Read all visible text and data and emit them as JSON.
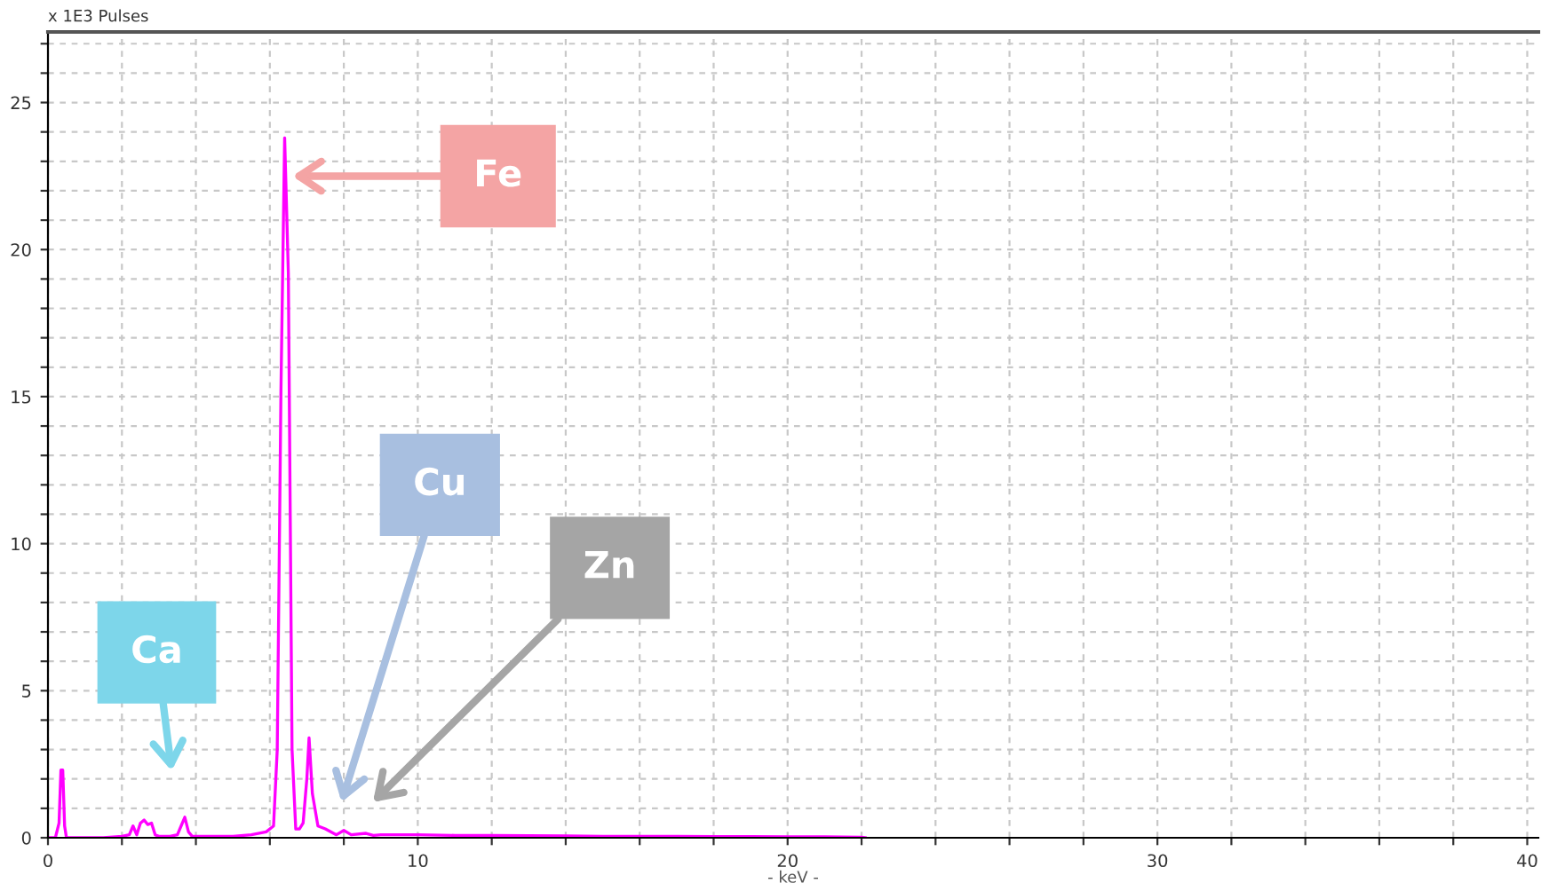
{
  "chart_data": {
    "type": "line",
    "ylabel": "x 1E3 Pulses",
    "xlabel": "- keV -",
    "series": [
      {
        "color": "#ff00ff",
        "x": [
          0,
          0.2,
          0.3,
          0.35,
          0.4,
          0.45,
          0.5,
          0.6,
          1.0,
          1.5,
          2.0,
          2.2,
          2.3,
          2.4,
          2.5,
          2.6,
          2.7,
          2.8,
          2.9,
          3.0,
          3.1,
          3.3,
          3.5,
          3.6,
          3.7,
          3.8,
          3.9,
          4.0,
          4.5,
          5.0,
          5.5,
          5.9,
          6.1,
          6.2,
          6.3,
          6.4,
          6.5,
          6.6,
          6.7,
          6.8,
          6.9,
          7.0,
          7.06,
          7.15,
          7.3,
          7.5,
          7.8,
          8.0,
          8.2,
          8.6,
          8.8,
          9.0,
          10,
          11,
          12,
          13,
          14,
          15,
          16,
          17,
          18,
          19,
          20,
          21,
          22,
          22.1
        ],
        "values": [
          0,
          0,
          0.5,
          2.3,
          2.3,
          0.4,
          0,
          0,
          0,
          0,
          0.05,
          0.1,
          0.4,
          0.1,
          0.5,
          0.6,
          0.45,
          0.5,
          0.1,
          0.05,
          0.05,
          0.05,
          0.1,
          0.4,
          0.7,
          0.2,
          0.05,
          0.05,
          0.05,
          0.05,
          0.1,
          0.2,
          0.4,
          3,
          15.2,
          23.8,
          19.2,
          3,
          0.3,
          0.3,
          0.5,
          2,
          3.4,
          1.5,
          0.4,
          0.3,
          0.1,
          0.25,
          0.1,
          0.15,
          0.08,
          0.1,
          0.1,
          0.08,
          0.08,
          0.07,
          0.06,
          0.05,
          0.05,
          0.05,
          0.04,
          0.04,
          0.03,
          0.03,
          0.02,
          0
        ]
      }
    ],
    "xlim": [
      0,
      40.3
    ],
    "ylim": [
      0,
      27.4
    ],
    "xticks": [
      0,
      {
        "value": 2,
        "label": null
      },
      {
        "value": 4,
        "label": null
      },
      {
        "value": 6,
        "label": null
      },
      {
        "value": 8,
        "label": null
      },
      10,
      {
        "value": 12,
        "label": null
      },
      {
        "value": 14,
        "label": null
      },
      {
        "value": 16,
        "label": null
      },
      {
        "value": 18,
        "label": null
      },
      20,
      {
        "value": 22,
        "label": null
      },
      {
        "value": 24,
        "label": null
      },
      {
        "value": 26,
        "label": null
      },
      {
        "value": 28,
        "label": null
      },
      30,
      {
        "value": 32,
        "label": null
      },
      {
        "value": 34,
        "label": null
      },
      {
        "value": 36,
        "label": null
      },
      {
        "value": 38,
        "label": null
      },
      40
    ],
    "yticks": [
      0,
      {
        "value": 1,
        "label": null
      },
      {
        "value": 2,
        "label": null
      },
      {
        "value": 3,
        "label": null
      },
      {
        "value": 4,
        "label": null
      },
      5,
      {
        "value": 6,
        "label": null
      },
      {
        "value": 7,
        "label": null
      },
      {
        "value": 8,
        "label": null
      },
      {
        "value": 9,
        "label": null
      },
      10,
      {
        "value": 11,
        "label": null
      },
      {
        "value": 12,
        "label": null
      },
      {
        "value": 13,
        "label": null
      },
      {
        "value": 14,
        "label": null
      },
      15,
      {
        "value": 16,
        "label": null
      },
      {
        "value": 17,
        "label": null
      },
      {
        "value": 18,
        "label": null
      },
      {
        "value": 19,
        "label": null
      },
      20,
      {
        "value": 21,
        "label": null
      },
      {
        "value": 22,
        "label": null
      },
      {
        "value": 23,
        "label": null
      },
      {
        "value": 24,
        "label": null
      },
      25,
      {
        "value": 26,
        "label": null
      },
      {
        "value": 27,
        "label": null
      }
    ],
    "grid": true,
    "marker": "none",
    "line_style": "solid",
    "annotations": [
      "Fe",
      "Cu",
      "Zn",
      "Ca"
    ]
  }
}
